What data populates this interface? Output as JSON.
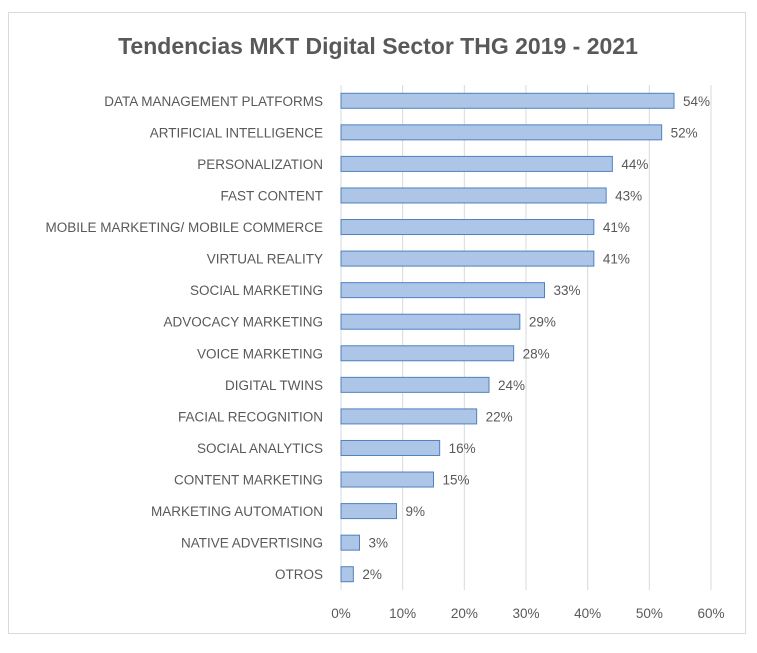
{
  "chart_data": {
    "type": "bar",
    "orientation": "horizontal",
    "title": "Tendencias MKT Digital Sector THG 2019 - 2021",
    "categories": [
      "DATA MANAGEMENT PLATFORMS",
      "ARTIFICIAL INTELLIGENCE",
      "PERSONALIZATION",
      "FAST CONTENT",
      "MOBILE MARKETING/ MOBILE COMMERCE",
      "VIRTUAL REALITY",
      "SOCIAL MARKETING",
      "ADVOCACY MARKETING",
      "VOICE MARKETING",
      "DIGITAL TWINS",
      "FACIAL RECOGNITION",
      "SOCIAL ANALYTICS",
      "CONTENT MARKETING",
      "MARKETING AUTOMATION",
      "NATIVE ADVERTISING",
      "OTROS"
    ],
    "values": [
      54,
      52,
      44,
      43,
      41,
      41,
      33,
      29,
      28,
      24,
      22,
      16,
      15,
      9,
      3,
      2
    ],
    "value_labels": [
      "54%",
      "52%",
      "44%",
      "43%",
      "41%",
      "41%",
      "33%",
      "29%",
      "28%",
      "24%",
      "22%",
      "16%",
      "15%",
      "9%",
      "3%",
      "2%"
    ],
    "xlim": [
      0,
      60
    ],
    "xticks": [
      0,
      10,
      20,
      30,
      40,
      50,
      60
    ],
    "xtick_labels": [
      "0%",
      "10%",
      "20%",
      "30%",
      "40%",
      "50%",
      "60%"
    ],
    "grid": true,
    "colors": {
      "bar_fill": "#adc6e8",
      "bar_stroke": "#4f81bd",
      "grid": "#d9d9d9",
      "text": "#595959"
    }
  }
}
